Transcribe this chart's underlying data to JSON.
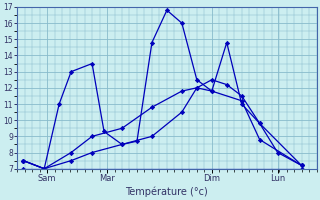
{
  "xlabel": "Température (°c)",
  "bg_color": "#cceef0",
  "grid_color": "#88bbcc",
  "line_color": "#0000bb",
  "ylim": [
    7,
    17
  ],
  "yticks": [
    7,
    8,
    9,
    10,
    11,
    12,
    13,
    14,
    15,
    16,
    17
  ],
  "xlim": [
    0,
    10
  ],
  "day_labels": [
    "Sam",
    "Mar",
    "Dim",
    "Lun"
  ],
  "day_positions": [
    1.0,
    3.0,
    6.5,
    8.7
  ],
  "lines": [
    {
      "x": [
        0.2,
        0.9,
        1.4,
        1.8,
        2.5,
        2.9,
        3.5,
        4.0,
        4.5,
        5.0,
        5.5,
        6.0,
        6.5,
        7.0,
        7.5,
        8.1,
        8.7,
        9.5
      ],
      "y": [
        7.5,
        7.0,
        11.0,
        13.0,
        13.5,
        9.3,
        8.5,
        8.7,
        14.8,
        16.8,
        16.0,
        12.5,
        11.8,
        14.8,
        11.0,
        9.8,
        8.0,
        7.2
      ]
    },
    {
      "x": [
        0.2,
        0.9,
        1.8,
        2.5,
        3.5,
        4.5,
        5.5,
        6.0,
        6.5,
        7.0,
        7.5,
        8.1,
        9.5
      ],
      "y": [
        7.5,
        7.0,
        8.0,
        9.0,
        9.5,
        10.8,
        11.8,
        12.0,
        12.5,
        12.2,
        11.5,
        9.8,
        7.2
      ]
    },
    {
      "x": [
        0.2,
        0.9,
        1.8,
        2.5,
        3.5,
        4.5,
        5.5,
        6.0,
        6.5,
        7.5,
        8.1,
        9.5
      ],
      "y": [
        7.5,
        7.0,
        7.5,
        8.0,
        8.5,
        9.0,
        10.5,
        12.0,
        11.8,
        11.2,
        8.8,
        7.2
      ]
    },
    {
      "x": [
        0.2,
        9.5
      ],
      "y": [
        7.0,
        7.0
      ]
    }
  ]
}
